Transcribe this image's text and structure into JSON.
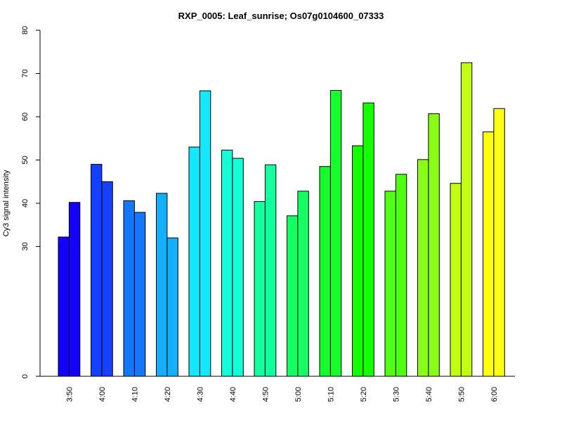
{
  "chart_data": {
    "type": "bar",
    "title": "RXP_0005: Leaf_sunrise; Os07g0104600_07333",
    "xlabel": "",
    "ylabel": "Cy3 signal intensity",
    "ylim": [
      0,
      80
    ],
    "y_ticks": [
      {
        "label": "0",
        "value": 0
      },
      {
        "label": "30",
        "value": 30
      },
      {
        "label": "40",
        "value": 40
      },
      {
        "label": "50",
        "value": 50
      },
      {
        "label": "60",
        "value": 60
      },
      {
        "label": "70",
        "value": 70
      },
      {
        "label": "80",
        "value": 80
      }
    ],
    "categories": [
      "3:50",
      "4:00",
      "4:10",
      "4:20",
      "4:30",
      "4:40",
      "4:50",
      "5:00",
      "5:10",
      "5:20",
      "5:30",
      "5:40",
      "5:50",
      "6:00"
    ],
    "colors": [
      "#1400ff",
      "#1440ff",
      "#1478ff",
      "#14b0ff",
      "#14e8ff",
      "#14ffd8",
      "#14ffa0",
      "#14ff64",
      "#14ff2c",
      "#14ff00",
      "#50ff14",
      "#88ff14",
      "#c0ff14",
      "#ffff14"
    ],
    "series": [
      {
        "values": [
          32.2,
          49.0,
          40.6,
          42.3,
          53.0,
          52.3,
          40.4,
          37.1,
          48.5,
          53.3,
          42.8,
          50.1,
          44.6,
          56.5
        ]
      },
      {
        "values": [
          40.2,
          45.0,
          37.9,
          32.0,
          66.0,
          50.4,
          48.9,
          42.8,
          66.1,
          63.2,
          46.7,
          60.7,
          72.5,
          61.9
        ]
      }
    ],
    "grid": false,
    "legend": "none"
  }
}
